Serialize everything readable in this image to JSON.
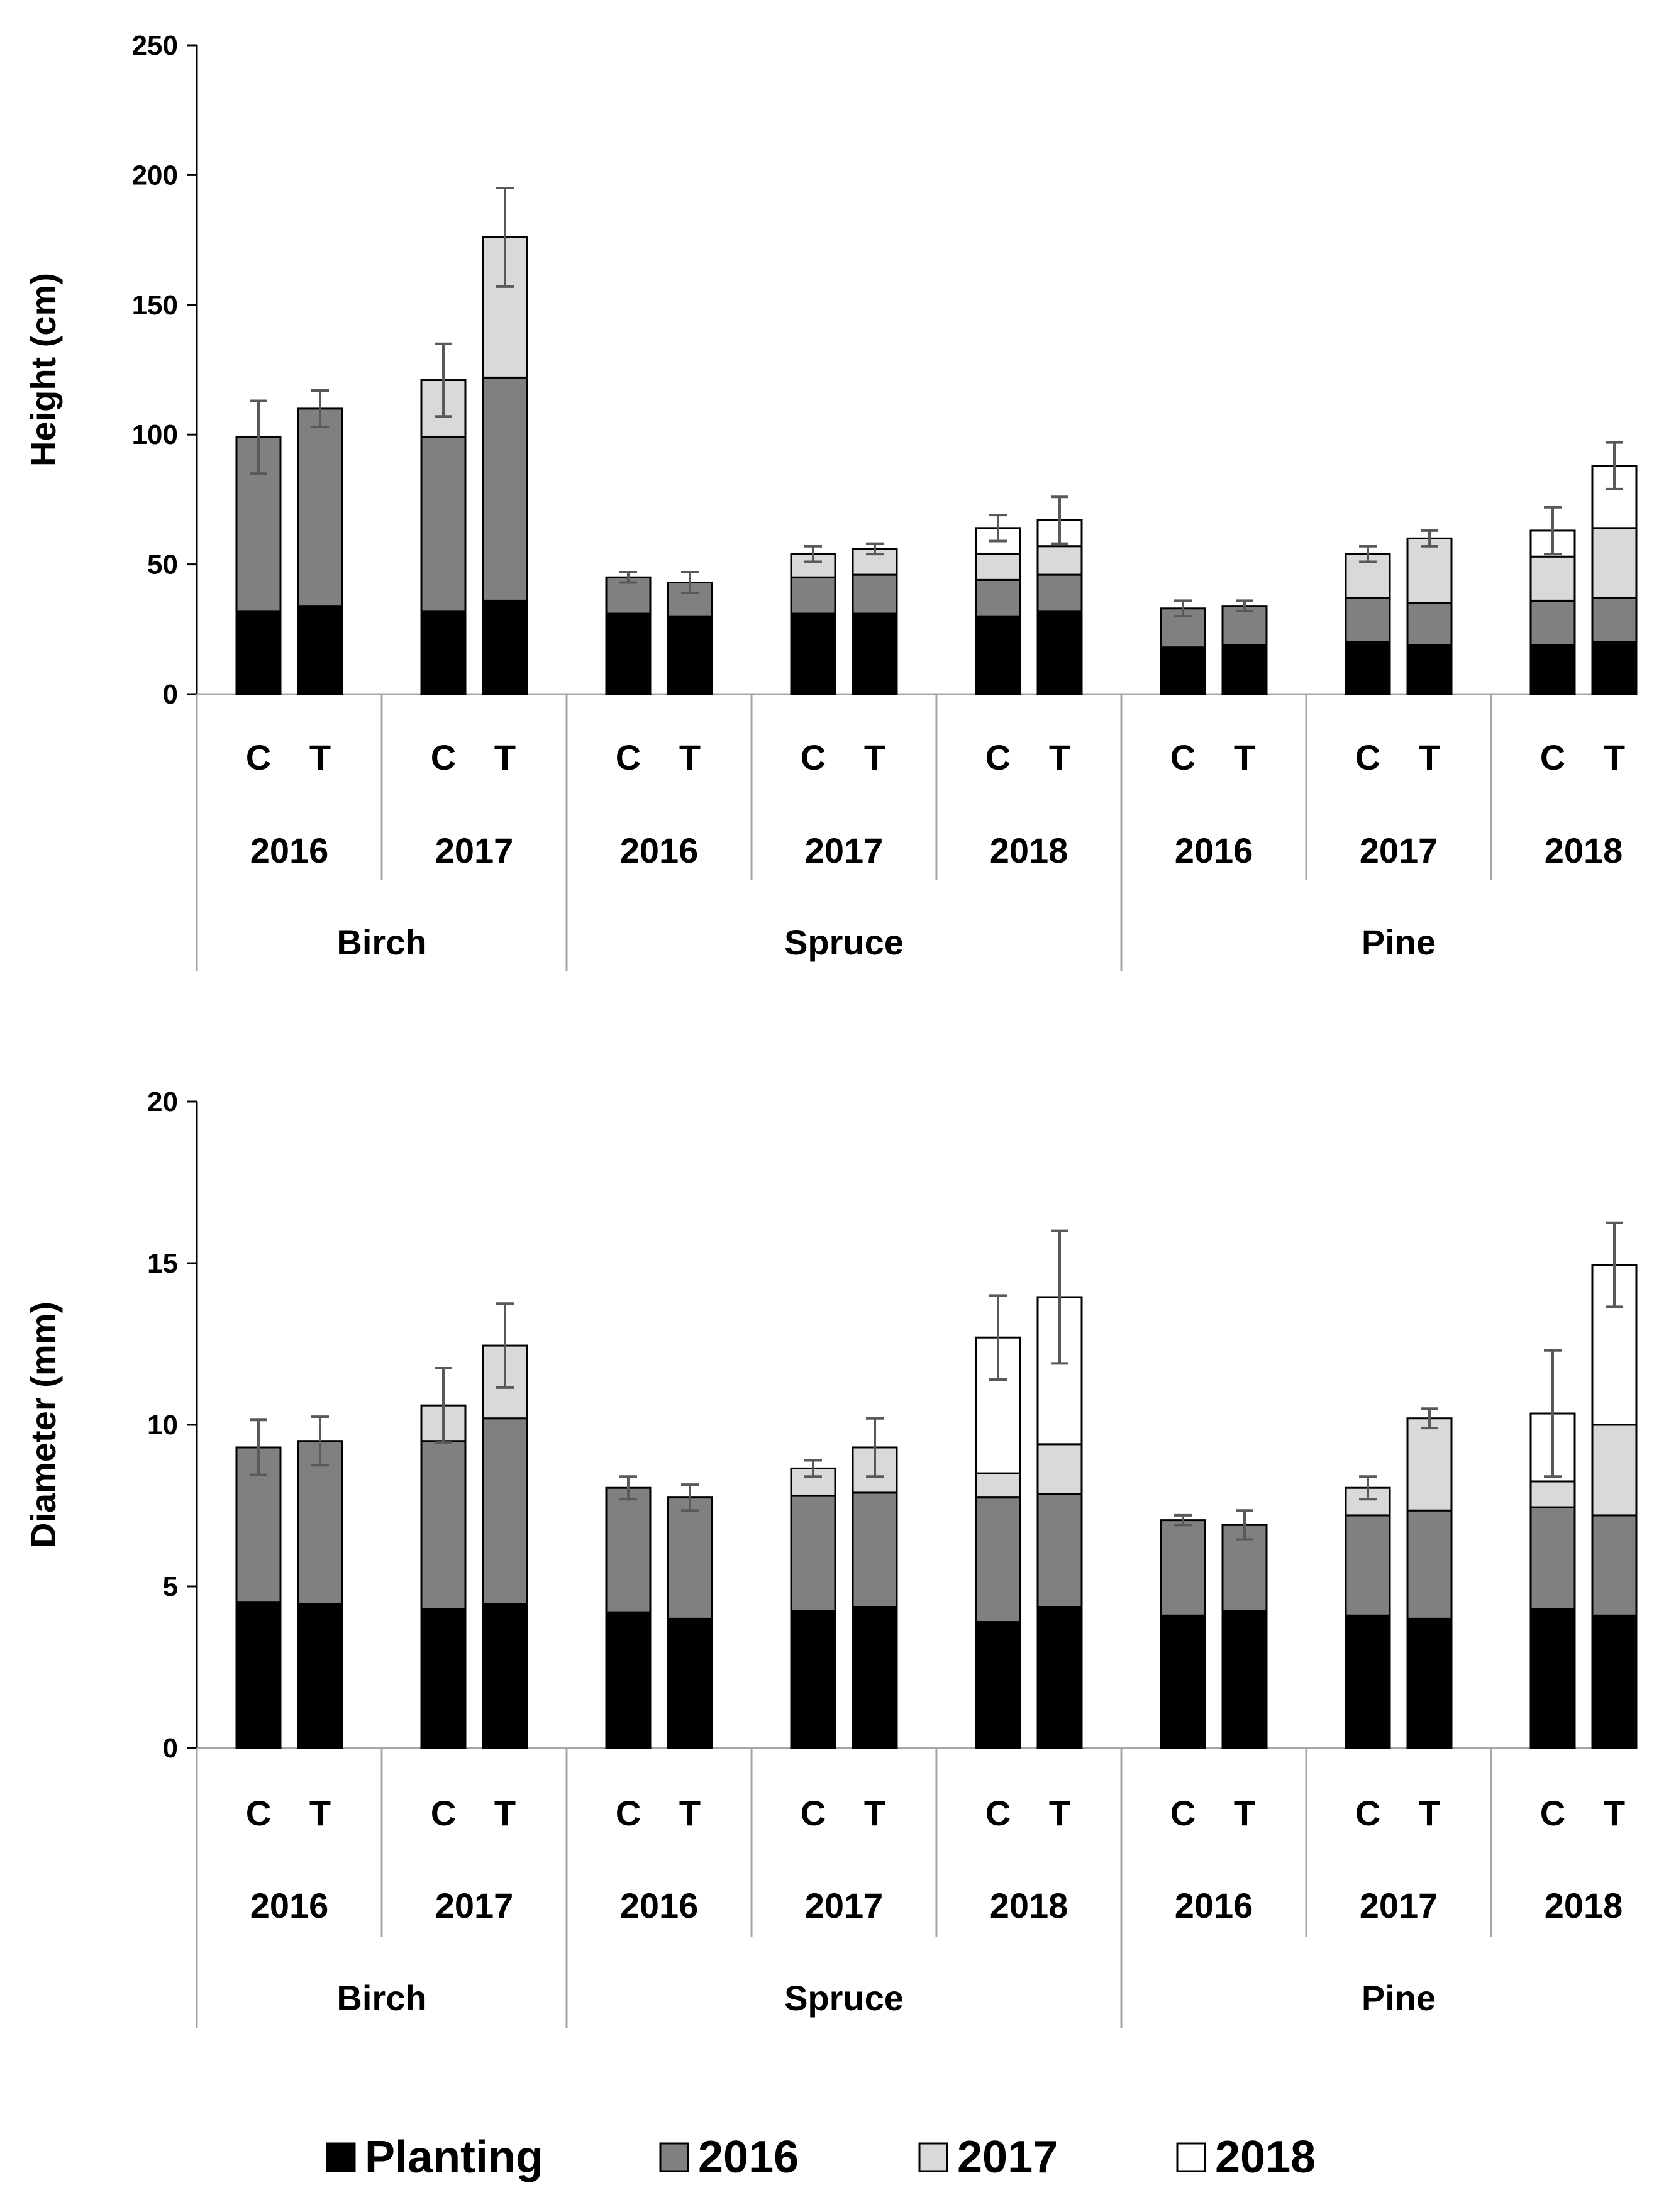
{
  "colors": {
    "Planting": "#000000",
    "2016": "#808080",
    "2017": "#d9d9d9",
    "2018": "#ffffff",
    "axis": "#000000",
    "separator": "#a6a6a6",
    "error_bar": "#595959"
  },
  "legend": [
    {
      "label": "Planting",
      "color_key": "Planting"
    },
    {
      "label": "2016",
      "color_key": "2016"
    },
    {
      "label": "2017",
      "color_key": "2017"
    },
    {
      "label": "2018",
      "color_key": "2018"
    }
  ],
  "chart_data": [
    {
      "type": "bar",
      "stacked": true,
      "ylabel": "Height (cm)",
      "ylim": [
        0,
        250
      ],
      "yticks": [
        0,
        50,
        100,
        150,
        200,
        250
      ],
      "series_names": [
        "Planting",
        "2016",
        "2017",
        "2018"
      ],
      "species": [
        {
          "name": "Birch",
          "years": [
            {
              "year": "2016",
              "bars": [
                {
                  "label": "C",
                  "segments": [
                    32,
                    67,
                    0,
                    0
                  ],
                  "error": 14
                },
                {
                  "label": "T",
                  "segments": [
                    34,
                    76,
                    0,
                    0
                  ],
                  "error": 7
                }
              ]
            },
            {
              "year": "2017",
              "bars": [
                {
                  "label": "C",
                  "segments": [
                    32,
                    67,
                    22,
                    0
                  ],
                  "error": 14
                },
                {
                  "label": "T",
                  "segments": [
                    36,
                    86,
                    54,
                    0
                  ],
                  "error": 19
                }
              ]
            }
          ]
        },
        {
          "name": "Spruce",
          "years": [
            {
              "year": "2016",
              "bars": [
                {
                  "label": "C",
                  "segments": [
                    31,
                    14,
                    0,
                    0
                  ],
                  "error": 2
                },
                {
                  "label": "T",
                  "segments": [
                    30,
                    13,
                    0,
                    0
                  ],
                  "error": 4
                }
              ]
            },
            {
              "year": "2017",
              "bars": [
                {
                  "label": "C",
                  "segments": [
                    31,
                    14,
                    9,
                    0
                  ],
                  "error": 3
                },
                {
                  "label": "T",
                  "segments": [
                    31,
                    15,
                    10,
                    0
                  ],
                  "error": 2
                }
              ]
            },
            {
              "year": "2018",
              "bars": [
                {
                  "label": "C",
                  "segments": [
                    30,
                    14,
                    10,
                    10
                  ],
                  "error": 5
                },
                {
                  "label": "T",
                  "segments": [
                    32,
                    14,
                    11,
                    10
                  ],
                  "error": 9
                }
              ]
            }
          ]
        },
        {
          "name": "Pine",
          "years": [
            {
              "year": "2016",
              "bars": [
                {
                  "label": "C",
                  "segments": [
                    18,
                    15,
                    0,
                    0
                  ],
                  "error": 3
                },
                {
                  "label": "T",
                  "segments": [
                    19,
                    15,
                    0,
                    0
                  ],
                  "error": 2
                }
              ]
            },
            {
              "year": "2017",
              "bars": [
                {
                  "label": "C",
                  "segments": [
                    20,
                    17,
                    17,
                    0
                  ],
                  "error": 3
                },
                {
                  "label": "T",
                  "segments": [
                    19,
                    16,
                    25,
                    0
                  ],
                  "error": 3
                }
              ]
            },
            {
              "year": "2018",
              "bars": [
                {
                  "label": "C",
                  "segments": [
                    19,
                    17,
                    17,
                    10
                  ],
                  "error": 9
                },
                {
                  "label": "T",
                  "segments": [
                    20,
                    17,
                    27,
                    24
                  ],
                  "error": 9
                }
              ]
            }
          ]
        }
      ]
    },
    {
      "type": "bar",
      "stacked": true,
      "ylabel": "Diameter (mm)",
      "ylim": [
        0,
        20
      ],
      "yticks": [
        0,
        5,
        10,
        15,
        20
      ],
      "series_names": [
        "Planting",
        "2016",
        "2017",
        "2018"
      ],
      "species": [
        {
          "name": "Birch",
          "years": [
            {
              "year": "2016",
              "bars": [
                {
                  "label": "C",
                  "segments": [
                    4.5,
                    4.8,
                    0,
                    0
                  ],
                  "error": 0.85
                },
                {
                  "label": "T",
                  "segments": [
                    4.45,
                    5.05,
                    0,
                    0
                  ],
                  "error": 0.75
                }
              ]
            },
            {
              "year": "2017",
              "bars": [
                {
                  "label": "C",
                  "segments": [
                    4.3,
                    5.2,
                    1.1,
                    0
                  ],
                  "error": 1.15
                },
                {
                  "label": "T",
                  "segments": [
                    4.45,
                    5.75,
                    2.25,
                    0
                  ],
                  "error": 1.3
                }
              ]
            }
          ]
        },
        {
          "name": "Spruce",
          "years": [
            {
              "year": "2016",
              "bars": [
                {
                  "label": "C",
                  "segments": [
                    4.2,
                    3.85,
                    0,
                    0
                  ],
                  "error": 0.35
                },
                {
                  "label": "T",
                  "segments": [
                    4.0,
                    3.75,
                    0,
                    0
                  ],
                  "error": 0.4
                }
              ]
            },
            {
              "year": "2017",
              "bars": [
                {
                  "label": "C",
                  "segments": [
                    4.25,
                    3.55,
                    0.85,
                    0
                  ],
                  "error": 0.25
                },
                {
                  "label": "T",
                  "segments": [
                    4.35,
                    3.55,
                    1.4,
                    0
                  ],
                  "error": 0.9
                }
              ]
            },
            {
              "year": "2018",
              "bars": [
                {
                  "label": "C",
                  "segments": [
                    3.9,
                    3.85,
                    0.75,
                    4.2
                  ],
                  "error": 1.3
                },
                {
                  "label": "T",
                  "segments": [
                    4.35,
                    3.5,
                    1.55,
                    4.55
                  ],
                  "error": 2.05
                }
              ]
            }
          ]
        },
        {
          "name": "Pine",
          "years": [
            {
              "year": "2016",
              "bars": [
                {
                  "label": "C",
                  "segments": [
                    4.1,
                    2.95,
                    0,
                    0
                  ],
                  "error": 0.15
                },
                {
                  "label": "T",
                  "segments": [
                    4.25,
                    2.65,
                    0,
                    0
                  ],
                  "error": 0.45
                }
              ]
            },
            {
              "year": "2017",
              "bars": [
                {
                  "label": "C",
                  "segments": [
                    4.1,
                    3.1,
                    0.85,
                    0
                  ],
                  "error": 0.35
                },
                {
                  "label": "T",
                  "segments": [
                    4.0,
                    3.35,
                    2.85,
                    0
                  ],
                  "error": 0.3
                }
              ]
            },
            {
              "year": "2018",
              "bars": [
                {
                  "label": "C",
                  "segments": [
                    4.3,
                    3.15,
                    0.8,
                    2.1
                  ],
                  "error": 1.95
                },
                {
                  "label": "T",
                  "segments": [
                    4.1,
                    3.1,
                    2.8,
                    4.95
                  ],
                  "error": 1.3
                }
              ]
            }
          ]
        }
      ]
    }
  ]
}
